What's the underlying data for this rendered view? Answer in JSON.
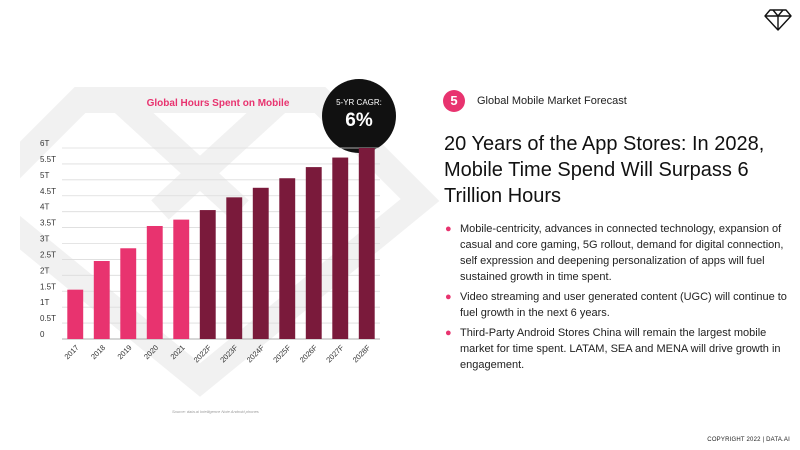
{
  "slide": {
    "number": "5",
    "section": "Global Mobile Market Forecast",
    "headline": "20 Years of the App Stores: In 2028, Mobile Time Spend Will Surpass 6 Trillion Hours",
    "bullets": [
      "Mobile-centricity, advances in connected technology, expansion of casual and core gaming, 5G rollout, demand for digital connection, self expression and deepening personalization of apps will fuel sustained growth in time spent.",
      "Video streaming and user generated content (UGC) will continue to fuel growth in the next 6 years.",
      "Third-Party Android Stores China will remain the largest mobile market for time spent. LATAM, SEA and MENA will drive growth in engagement."
    ],
    "source": "Source: data.ai Intelligence Note Android phones",
    "copyright": "COPYRIGHT 2022 | DATA.AI",
    "cagr_label": "5-YR CAGR:",
    "cagr_value": "6%"
  },
  "colors": {
    "actual": "#e8336f",
    "forecast": "#7a1a3b",
    "accent": "#e8336f"
  },
  "chart_data": {
    "type": "bar",
    "title": "Global Hours Spent on Mobile",
    "categories": [
      "2017",
      "2018",
      "2019",
      "2020",
      "2021",
      "2022F",
      "2023F",
      "2024F",
      "2025F",
      "2026F",
      "2027F",
      "2028F"
    ],
    "values": [
      1.55,
      2.45,
      2.85,
      3.55,
      3.75,
      4.05,
      4.45,
      4.75,
      5.05,
      5.4,
      5.7,
      6.0
    ],
    "forecast_flags": [
      false,
      false,
      false,
      false,
      false,
      true,
      true,
      true,
      true,
      true,
      true,
      true
    ],
    "yticks": [
      "0",
      "0.5T",
      "1T",
      "1.5T",
      "2T",
      "2.5T",
      "3T",
      "3.5T",
      "4T",
      "4.5T",
      "5T",
      "5.5T",
      "6T"
    ],
    "ylim": [
      0,
      6
    ],
    "grid": true,
    "legend": "none"
  }
}
